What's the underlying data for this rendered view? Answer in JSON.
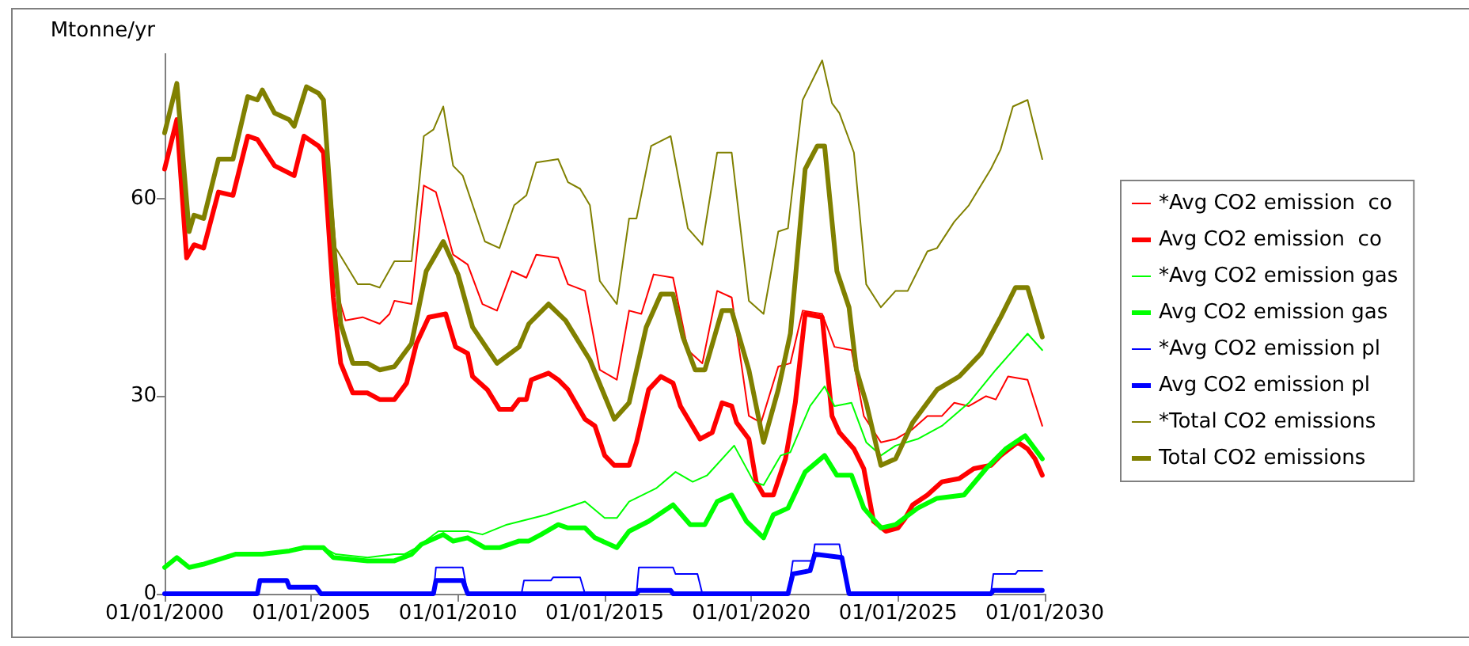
{
  "chart_data": {
    "type": "line",
    "ylabel": "Mtonne/yr",
    "legend": "right",
    "grid": false,
    "marker": "none",
    "line_style": "solid",
    "xlim": [
      "2000-01-01",
      "2030-01-01"
    ],
    "xticks": [
      {
        "value": "2000-01-01",
        "label": "01/01/2000"
      },
      {
        "value": "2005-01-01",
        "label": "01/01/2005"
      },
      {
        "value": "2010-01-01",
        "label": "01/01/2010"
      },
      {
        "value": "2015-01-01",
        "label": "01/01/2015"
      },
      {
        "value": "2020-01-01",
        "label": "01/01/2020"
      },
      {
        "value": "2025-01-01",
        "label": "01/01/2025"
      },
      {
        "value": "2030-01-01",
        "label": "01/01/2030"
      }
    ],
    "ylim": [
      0,
      82
    ],
    "yticks": [
      0,
      30,
      60
    ],
    "series": [
      {
        "name": "*Avg CO2 emission  co",
        "color": "#ff0000",
        "x": [
          "2005-06",
          "2005-11",
          "2006-03",
          "2006-10",
          "2007-05",
          "2007-09",
          "2007-11",
          "2008-06",
          "2008-11",
          "2009-04",
          "2009-11",
          "2010-05",
          "2010-11",
          "2011-05",
          "2011-11",
          "2012-05",
          "2012-09",
          "2013-06",
          "2013-10",
          "2014-05",
          "2014-11",
          "2015-06",
          "2015-11",
          "2016-04",
          "2016-09",
          "2017-05",
          "2017-11",
          "2018-05",
          "2018-11",
          "2019-05",
          "2019-12",
          "2020-05",
          "2020-12",
          "2021-05",
          "2021-10",
          "2022-06",
          "2022-11",
          "2023-06",
          "2023-11",
          "2024-06",
          "2024-12",
          "2025-07",
          "2026-01",
          "2026-07",
          "2026-12",
          "2027-06",
          "2028-01",
          "2028-05",
          "2028-10",
          "2029-06",
          "2029-12"
        ],
        "values": [
          67,
          46.5,
          41.5,
          42,
          41,
          42.5,
          44.5,
          44,
          62,
          61,
          51.5,
          50,
          44,
          43,
          49,
          48,
          51.5,
          51,
          47,
          46,
          34,
          32.5,
          43,
          42.5,
          48.5,
          48,
          37,
          35,
          46,
          45,
          27,
          26,
          34.5,
          35,
          43,
          42.5,
          37.5,
          37,
          27,
          23,
          23.5,
          25,
          27,
          27,
          29,
          28.5,
          30,
          29.5,
          33,
          32.5,
          25.5
        ]
      },
      {
        "name": "Avg CO2 emission  co",
        "color": "#ff0000",
        "x": [
          "2000-01",
          "2000-06",
          "2000-10",
          "2001-01",
          "2001-05",
          "2001-11",
          "2002-05",
          "2002-11",
          "2003-03",
          "2003-10",
          "2004-06",
          "2004-10",
          "2005-04",
          "2005-06",
          "2005-10",
          "2006-01",
          "2006-06",
          "2006-12",
          "2007-05",
          "2007-11",
          "2008-04",
          "2008-08",
          "2009-01",
          "2009-08",
          "2009-12",
          "2010-05",
          "2010-07",
          "2011-01",
          "2011-06",
          "2011-11",
          "2012-02",
          "2012-05",
          "2012-07",
          "2013-02",
          "2013-06",
          "2013-10",
          "2014-05",
          "2014-09",
          "2015-01",
          "2015-05",
          "2015-11",
          "2016-02",
          "2016-07",
          "2016-12",
          "2017-05",
          "2017-08",
          "2017-12",
          "2018-04",
          "2018-09",
          "2019-01",
          "2019-05",
          "2019-07",
          "2019-12",
          "2020-03",
          "2020-06",
          "2020-10",
          "2021-03",
          "2021-07",
          "2021-11",
          "2022-06",
          "2022-10",
          "2023-01",
          "2023-07",
          "2023-11",
          "2024-03",
          "2024-08",
          "2025-01",
          "2025-04",
          "2025-07",
          "2026-01",
          "2026-07",
          "2027-02",
          "2027-08",
          "2028-03",
          "2028-07",
          "2029-02",
          "2029-06",
          "2029-09",
          "2029-12"
        ],
        "values": [
          64.5,
          72,
          51,
          53,
          52.5,
          61,
          60.5,
          69.5,
          69,
          65,
          63.5,
          69.5,
          68,
          67,
          45,
          35,
          30.5,
          30.5,
          29.5,
          29.5,
          32,
          38,
          42,
          42.5,
          37.5,
          36.5,
          33,
          31,
          28,
          28,
          29.5,
          29.5,
          32.5,
          33.5,
          32.5,
          31,
          26.5,
          25.5,
          21,
          19.5,
          19.5,
          23,
          31,
          33,
          32,
          28.5,
          26,
          23.5,
          24.5,
          29,
          28.5,
          26,
          23.5,
          17,
          15,
          15,
          20.5,
          29,
          42.5,
          42,
          27,
          24.5,
          22,
          19,
          11,
          9.5,
          10,
          11.5,
          13.5,
          15,
          17,
          17.5,
          19,
          19.5,
          21,
          23,
          22,
          20.5,
          18
        ]
      },
      {
        "name": "*Avg CO2 emission gas",
        "color": "#00ff00",
        "x": [
          "2005-06",
          "2005-11",
          "2006-12",
          "2007-11",
          "2008-03",
          "2008-08",
          "2009-05",
          "2010-05",
          "2010-11",
          "2011-09",
          "2013-01",
          "2014-05",
          "2015-01",
          "2015-06",
          "2015-11",
          "2016-10",
          "2017-06",
          "2018-01",
          "2018-07",
          "2019-06",
          "2020-02",
          "2020-06",
          "2021-01",
          "2021-05",
          "2022-01",
          "2022-07",
          "2022-11",
          "2023-06",
          "2023-12",
          "2024-06",
          "2024-12",
          "2025-09",
          "2026-07",
          "2027-06",
          "2028-05",
          "2029-06",
          "2029-12"
        ],
        "values": [
          7,
          6,
          5.5,
          6,
          6,
          7,
          9.5,
          9.5,
          9,
          10.5,
          12,
          14,
          11.5,
          11.5,
          14,
          16,
          18.5,
          17,
          18,
          22.5,
          17,
          16.5,
          21,
          21.5,
          28.5,
          31.5,
          28.5,
          29,
          23,
          21,
          22.5,
          23.5,
          25.5,
          29,
          34,
          39.5,
          37
        ]
      },
      {
        "name": "Avg CO2 emission gas",
        "color": "#00ff00",
        "x": [
          "2000-01",
          "2000-06",
          "2000-11",
          "2001-05",
          "2002-06",
          "2003-05",
          "2004-04",
          "2004-10",
          "2005-06",
          "2005-10",
          "2006-12",
          "2007-11",
          "2008-06",
          "2008-10",
          "2009-07",
          "2009-11",
          "2010-05",
          "2010-12",
          "2011-06",
          "2012-02",
          "2012-06",
          "2012-11",
          "2013-06",
          "2013-10",
          "2014-05",
          "2014-09",
          "2015-06",
          "2015-11",
          "2016-07",
          "2017-05",
          "2017-12",
          "2018-06",
          "2018-11",
          "2019-05",
          "2019-11",
          "2020-06",
          "2020-10",
          "2021-04",
          "2021-11",
          "2022-07",
          "2022-12",
          "2023-06",
          "2023-11",
          "2024-06",
          "2024-12",
          "2025-09",
          "2026-05",
          "2027-04",
          "2028-01",
          "2028-09",
          "2029-05",
          "2029-12"
        ],
        "values": [
          4,
          5.5,
          4,
          4.5,
          6,
          6,
          6.5,
          7,
          7,
          5.5,
          5,
          5,
          6,
          7.5,
          9,
          8,
          8.5,
          7,
          7,
          8,
          8,
          9,
          10.5,
          10,
          10,
          8.5,
          7,
          9.5,
          11,
          13.5,
          10.5,
          10.5,
          14,
          15,
          11,
          8.5,
          12,
          13,
          18.5,
          21,
          18,
          18,
          13,
          10,
          10.5,
          13,
          14.5,
          15,
          19,
          22,
          24,
          20.5
        ]
      },
      {
        "name": "*Avg CO2 emission pl",
        "color": "#0000ff",
        "x": [
          "2009-03",
          "2009-04",
          "2010-03",
          "2010-05",
          "2011-01",
          "2012-03",
          "2012-04",
          "2013-03",
          "2013-04",
          "2014-03",
          "2014-05",
          "2015-06",
          "2016-02",
          "2016-03",
          "2017-05",
          "2017-06",
          "2018-03",
          "2018-05",
          "2019-06",
          "2021-04",
          "2021-06",
          "2022-02",
          "2022-03",
          "2023-01",
          "2023-02",
          "2023-05",
          "2025-06",
          "2028-03",
          "2028-04",
          "2029-01",
          "2029-02",
          "2029-12"
        ],
        "values": [
          0,
          4,
          4,
          0,
          null,
          0,
          2,
          2,
          2.5,
          2.5,
          0,
          null,
          0,
          4,
          4,
          3,
          3,
          0,
          null,
          0,
          5,
          5,
          7.5,
          7.5,
          5.5,
          0,
          null,
          0,
          3,
          3,
          3.5,
          3.5
        ]
      },
      {
        "name": "Avg CO2 emission pl",
        "color": "#0000ff",
        "x": [
          "2000-01",
          "2003-03",
          "2003-04",
          "2004-03",
          "2004-04",
          "2005-03",
          "2005-05",
          "2009-03",
          "2009-04",
          "2010-03",
          "2010-05",
          "2016-02",
          "2016-03",
          "2017-04",
          "2017-05",
          "2021-04",
          "2021-06",
          "2022-01",
          "2022-03",
          "2023-02",
          "2023-05",
          "2028-03",
          "2028-04",
          "2029-12"
        ],
        "values": [
          0,
          0,
          2,
          2,
          1,
          1,
          0,
          0,
          2,
          2,
          0,
          0,
          0.5,
          0.5,
          0,
          0,
          3,
          3.5,
          6,
          5.5,
          0,
          0,
          0.5,
          0.5
        ]
      },
      {
        "name": "*Total CO2 emissions",
        "color": "#808000",
        "x": [
          "2005-06",
          "2005-11",
          "2006-08",
          "2007-01",
          "2007-05",
          "2007-11",
          "2008-06",
          "2008-11",
          "2009-03",
          "2009-07",
          "2009-11",
          "2010-03",
          "2010-12",
          "2011-06",
          "2011-12",
          "2012-05",
          "2012-09",
          "2013-06",
          "2013-10",
          "2014-03",
          "2014-07",
          "2014-11",
          "2015-06",
          "2015-11",
          "2016-02",
          "2016-08",
          "2017-04",
          "2017-11",
          "2018-05",
          "2018-11",
          "2019-05",
          "2019-12",
          "2020-06",
          "2020-12",
          "2021-04",
          "2021-10",
          "2022-06",
          "2022-10",
          "2023-01",
          "2023-07",
          "2023-12",
          "2024-06",
          "2024-12",
          "2025-05",
          "2026-01",
          "2026-05",
          "2026-12",
          "2027-06",
          "2028-03",
          "2028-07",
          "2028-12",
          "2029-06",
          "2029-12"
        ],
        "values": [
          75,
          52.5,
          47,
          47,
          46.5,
          50.5,
          50.5,
          69.5,
          70.5,
          74,
          65,
          63.5,
          53.5,
          52.5,
          59,
          60.5,
          65.5,
          66,
          62.5,
          61.5,
          59,
          47.5,
          44,
          57,
          57,
          68,
          69.5,
          55.5,
          53,
          67,
          67,
          44.5,
          42.5,
          55,
          55.5,
          75,
          81,
          74.5,
          73,
          67,
          47,
          43.5,
          46,
          46,
          52,
          52.5,
          56.5,
          59,
          64.5,
          67.5,
          74,
          75,
          66
        ]
      },
      {
        "name": "Total CO2 emissions",
        "color": "#808000",
        "x": [
          "2000-01",
          "2000-06",
          "2000-11",
          "2001-01",
          "2001-05",
          "2001-11",
          "2002-05",
          "2002-11",
          "2003-03",
          "2003-05",
          "2003-10",
          "2004-04",
          "2004-06",
          "2004-11",
          "2005-04",
          "2005-06",
          "2005-10",
          "2006-01",
          "2006-06",
          "2006-12",
          "2007-05",
          "2007-11",
          "2008-06",
          "2008-12",
          "2009-07",
          "2010-01",
          "2010-07",
          "2011-05",
          "2012-02",
          "2012-06",
          "2013-02",
          "2013-09",
          "2014-07",
          "2015-05",
          "2015-11",
          "2016-06",
          "2016-12",
          "2017-05",
          "2017-09",
          "2018-02",
          "2018-06",
          "2019-01",
          "2019-05",
          "2019-12",
          "2020-06",
          "2020-12",
          "2021-05",
          "2021-11",
          "2022-04",
          "2022-07",
          "2022-12",
          "2023-05",
          "2023-08",
          "2023-12",
          "2024-06",
          "2024-12",
          "2025-07",
          "2026-05",
          "2027-02",
          "2027-11",
          "2028-07",
          "2029-01",
          "2029-06",
          "2029-12"
        ],
        "values": [
          70,
          77.5,
          55,
          57.5,
          57,
          66,
          66,
          75.5,
          75,
          76.5,
          73,
          72,
          71,
          77,
          76,
          75,
          54,
          41,
          35,
          35,
          34,
          34.5,
          38,
          49,
          53.5,
          48.5,
          40.5,
          35,
          37.5,
          41,
          44,
          41.5,
          35.5,
          26.5,
          29,
          40.5,
          45.5,
          45.5,
          39,
          34,
          34,
          43,
          43,
          34,
          23,
          31,
          39.5,
          64.5,
          68,
          68,
          49,
          43.5,
          34,
          29,
          19.5,
          20.5,
          26,
          31,
          33,
          36.5,
          42,
          46.5,
          46.5,
          39
        ]
      }
    ]
  }
}
